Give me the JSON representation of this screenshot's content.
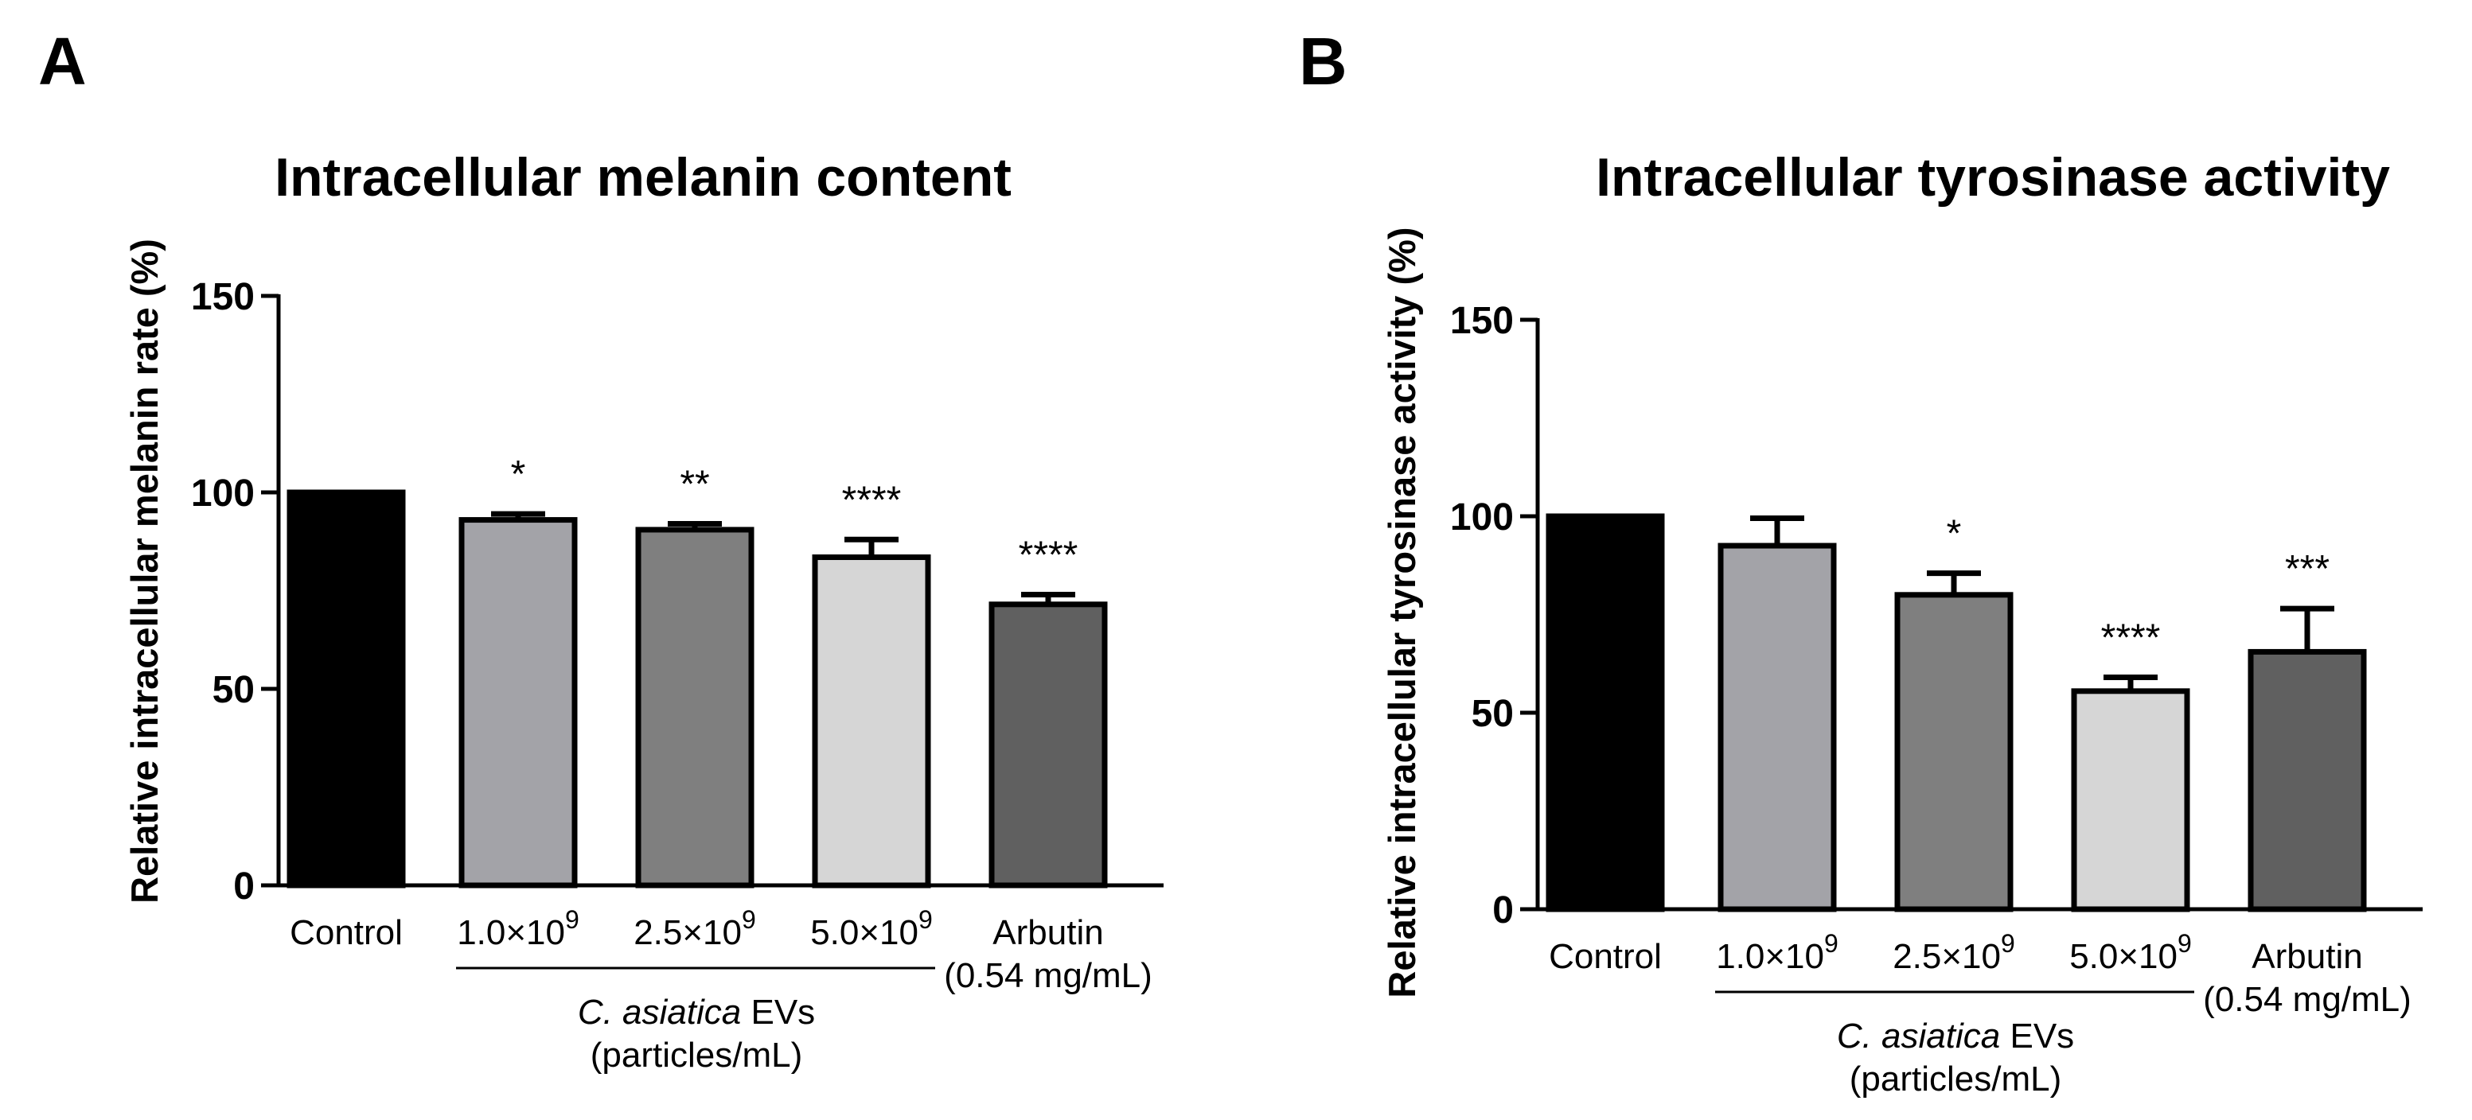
{
  "chart_data": [
    {
      "panel": "A",
      "type": "bar",
      "title": "Intracellular melanin content",
      "xlabel": "",
      "ylabel": "Relative intracellular melanin rate (%)",
      "ylim": [
        0,
        150
      ],
      "yticks": [
        0,
        50,
        100,
        150
      ],
      "grid": false,
      "categories": [
        {
          "main": "Control",
          "exp": "",
          "line2": ""
        },
        {
          "main": "1.0×10",
          "exp": "9",
          "line2": ""
        },
        {
          "main": "2.5×10",
          "exp": "9",
          "line2": ""
        },
        {
          "main": "5.0×10",
          "exp": "9",
          "line2": ""
        },
        {
          "main": "Arbutin",
          "exp": "",
          "line2": "(0.54 mg/mL)"
        }
      ],
      "values": [
        100,
        93,
        90.5,
        83.5,
        71.5
      ],
      "errors": [
        0,
        1.5,
        1.5,
        4.5,
        2.5
      ],
      "significance": [
        "",
        "*",
        "**",
        "****",
        "****"
      ],
      "colors": [
        "#000000",
        "#a3a3a8",
        "#7f7f7f",
        "#d6d6d6",
        "#606060"
      ],
      "group": {
        "italic": "C. asiatica",
        "rest": " EVs",
        "line2": "(particles/mL)"
      }
    },
    {
      "panel": "B",
      "type": "bar",
      "title": "Intracellular tyrosinase activity",
      "xlabel": "",
      "ylabel": "Relative intracellular tyrosinase activity (%)",
      "ylim": [
        0,
        150
      ],
      "yticks": [
        0,
        50,
        100,
        150
      ],
      "grid": false,
      "categories": [
        {
          "main": "Control",
          "exp": "",
          "line2": ""
        },
        {
          "main": "1.0×10",
          "exp": "9",
          "line2": ""
        },
        {
          "main": "2.5×10",
          "exp": "9",
          "line2": ""
        },
        {
          "main": "5.0×10",
          "exp": "9",
          "line2": ""
        },
        {
          "main": "Arbutin",
          "exp": "",
          "line2": "(0.54 mg/mL)"
        }
      ],
      "values": [
        100,
        92.5,
        80,
        55.5,
        65.5
      ],
      "errors": [
        0,
        7,
        5.5,
        3.5,
        11
      ],
      "significance": [
        "",
        "",
        "*",
        "****",
        "***"
      ],
      "colors": [
        "#000000",
        "#a3a3a8",
        "#7f7f7f",
        "#d6d6d6",
        "#606060"
      ],
      "group": {
        "italic": "C. asiatica",
        "rest": " EVs",
        "line2": "(particles/mL)"
      }
    }
  ]
}
